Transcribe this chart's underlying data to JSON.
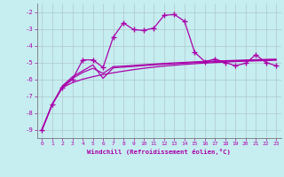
{
  "xlabel": "Windchill (Refroidissement éolien,°C)",
  "x_ticks": [
    0,
    1,
    2,
    3,
    4,
    5,
    6,
    7,
    8,
    9,
    10,
    11,
    12,
    13,
    14,
    15,
    16,
    17,
    18,
    19,
    20,
    21,
    22,
    23
  ],
  "ylim": [
    -9.5,
    -1.5
  ],
  "xlim": [
    -0.5,
    23.5
  ],
  "yticks": [
    -9,
    -8,
    -7,
    -6,
    -5,
    -4,
    -3,
    -2
  ],
  "bg_color": "#c6edf0",
  "grid_color": "#b0c8cc",
  "line_color": "#aa00aa",
  "ref1_y": [
    -9.0,
    -7.5,
    -6.5,
    -6.2,
    -6.0,
    -5.85,
    -5.72,
    -5.62,
    -5.52,
    -5.43,
    -5.35,
    -5.28,
    -5.22,
    -5.17,
    -5.12,
    -5.08,
    -5.04,
    -5.01,
    -4.98,
    -4.95,
    -4.93,
    -4.91,
    -4.89,
    -4.87
  ],
  "ref2_y": [
    -9.0,
    -7.5,
    -6.45,
    -5.95,
    -5.6,
    -5.35,
    -5.65,
    -5.25,
    -5.22,
    -5.18,
    -5.14,
    -5.1,
    -5.06,
    -5.03,
    -5.0,
    -4.97,
    -4.94,
    -4.92,
    -4.9,
    -4.88,
    -4.86,
    -4.84,
    -4.82,
    -4.81
  ],
  "ref3_y": [
    -9.0,
    -7.5,
    -6.4,
    -5.85,
    -5.5,
    -5.15,
    -5.95,
    -5.32,
    -5.28,
    -5.24,
    -5.19,
    -5.15,
    -5.11,
    -5.08,
    -5.04,
    -5.01,
    -4.98,
    -4.96,
    -4.93,
    -4.91,
    -4.89,
    -4.87,
    -4.85,
    -4.84
  ],
  "main_y": [
    -9.0,
    -7.5,
    -6.5,
    -6.0,
    -4.85,
    -4.85,
    -5.3,
    -3.5,
    -2.65,
    -3.05,
    -3.1,
    -2.95,
    -2.2,
    -2.15,
    -2.55,
    -4.4,
    -4.95,
    -4.8,
    -5.0,
    -5.2,
    -5.05,
    -4.55,
    -5.0,
    -5.2
  ]
}
